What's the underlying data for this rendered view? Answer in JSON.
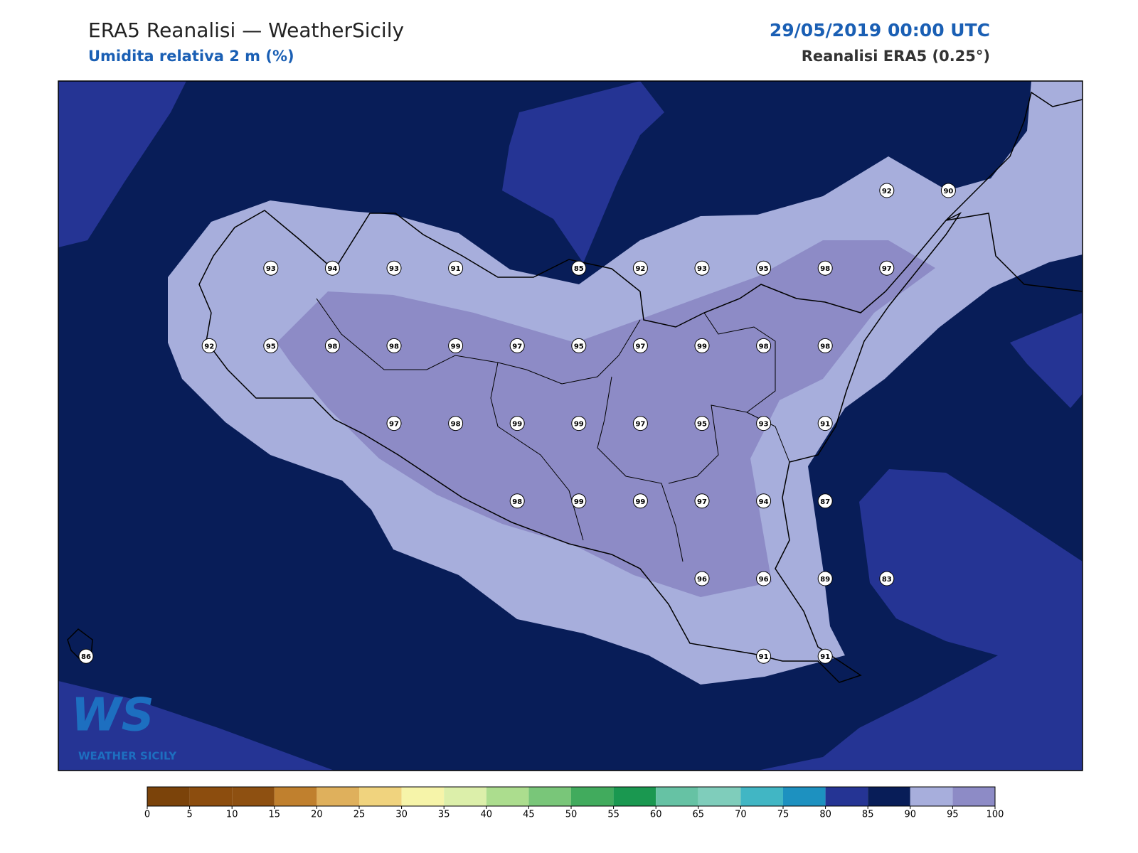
{
  "header": {
    "title": "ERA5 Reanalisi — WeatherSicily",
    "subtitle": "Umidita relativa 2 m (%)",
    "date": "29/05/2019 00:00 UTC",
    "source": "Reanalisi ERA5 (0.25°)"
  },
  "stations": [
    92,
    90,
    93,
    94,
    93,
    91,
    85,
    92,
    93,
    95,
    98,
    97,
    92,
    95,
    98,
    98,
    99,
    97,
    95,
    97,
    99,
    98,
    98,
    97,
    98,
    99,
    99,
    97,
    95,
    93,
    91,
    98,
    99,
    99,
    97,
    94,
    87,
    96,
    96,
    89,
    83,
    86,
    91,
    91
  ],
  "colorbar": {
    "ticks": [
      0,
      5,
      10,
      15,
      20,
      25,
      30,
      35,
      40,
      45,
      50,
      55,
      60,
      65,
      70,
      75,
      80,
      85,
      90,
      95,
      100
    ],
    "colors": [
      "#7b430a",
      "#8c4d0e",
      "#8e5011",
      "#c0802e",
      "#dfb05c",
      "#f0d37e",
      "#f6f4a9",
      "#dcefaa",
      "#acdd8e",
      "#79c679",
      "#41ab5d",
      "#1a9850",
      "#66c2a4",
      "#7fcdbb",
      "#41b6c4",
      "#1d91c0",
      "#253494",
      "#081d58",
      "#a7aedc",
      "#8d8bc6"
    ]
  },
  "logo": {
    "mark": "WS",
    "name": "WEATHER SICILY"
  }
}
